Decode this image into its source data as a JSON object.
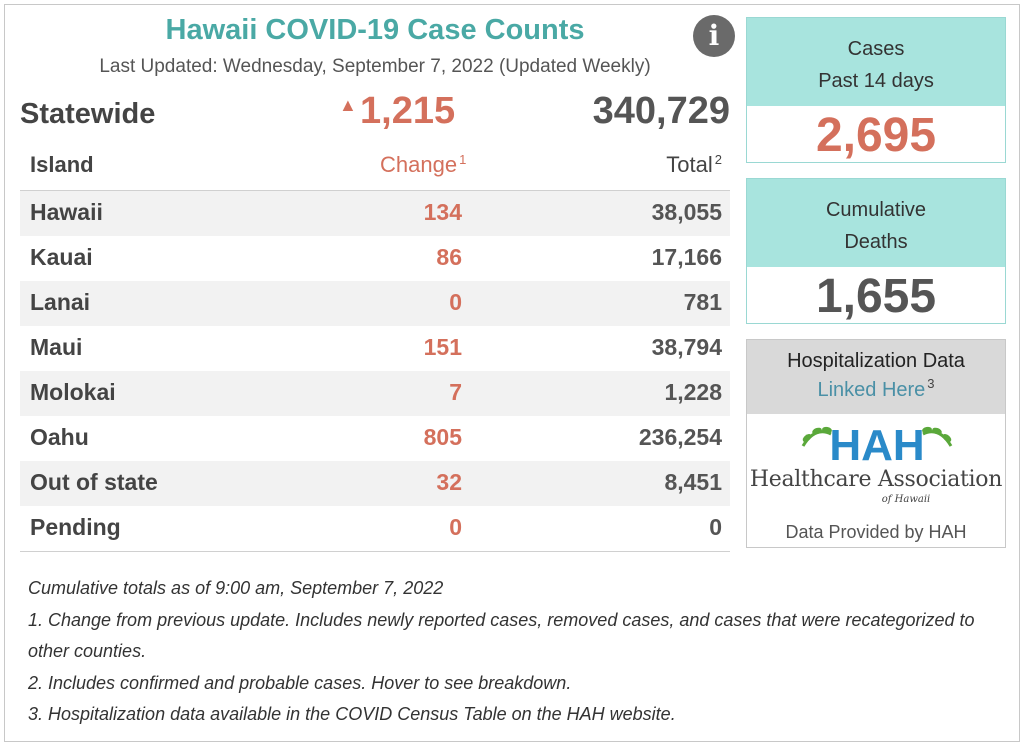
{
  "header": {
    "title": "Hawaii COVID-19 Case Counts",
    "last_updated": "Last Updated: Wednesday, September 7, 2022 (Updated Weekly)",
    "info_icon": "info-icon"
  },
  "statewide": {
    "label": "Statewide",
    "change": "1,215",
    "total": "340,729",
    "up_icon": "up-triangle-icon"
  },
  "table": {
    "col_island": "Island",
    "col_change": "Change",
    "col_change_sup": "1",
    "col_total": "Total",
    "col_total_sup": "2",
    "rows": [
      {
        "island": "Hawaii",
        "change": "134",
        "total": "38,055"
      },
      {
        "island": "Kauai",
        "change": "86",
        "total": "17,166"
      },
      {
        "island": "Lanai",
        "change": "0",
        "total": "781"
      },
      {
        "island": "Maui",
        "change": "151",
        "total": "38,794"
      },
      {
        "island": "Molokai",
        "change": "7",
        "total": "1,228"
      },
      {
        "island": "Oahu",
        "change": "805",
        "total": "236,254"
      },
      {
        "island": "Out of state",
        "change": "32",
        "total": "8,451"
      },
      {
        "island": "Pending",
        "change": "0",
        "total": "0"
      }
    ]
  },
  "cards": {
    "cases": {
      "line1": "Cases",
      "line2": "Past 14 days",
      "value": "2,695"
    },
    "deaths": {
      "line1": "Cumulative",
      "line2": "Deaths",
      "value": "1,655"
    }
  },
  "hospitalization": {
    "title": "Hospitalization Data",
    "link": "Linked Here",
    "link_sup": "3",
    "logo_letters": "HAH",
    "logo_name": "Healthcare Association",
    "logo_sub": "of Hawaii",
    "provided": "Data Provided by HAH"
  },
  "notes": [
    "Cumulative totals as of 9:00 am, September 7, 2022",
    "1. Change from previous update. Includes newly reported cases, removed cases, and cases that were recategorized to other counties.",
    "2. Includes confirmed and probable cases. Hover to see breakdown.",
    "3. Hospitalization data available in the COVID Census Table on the HAH website."
  ],
  "colors": {
    "teal_title": "#4aa9a5",
    "change_red": "#d4705c",
    "card_teal": "#a8e4de",
    "link_blue": "#4a90a6",
    "logo_blue": "#2a8ac9",
    "logo_green": "#5aa83a"
  }
}
